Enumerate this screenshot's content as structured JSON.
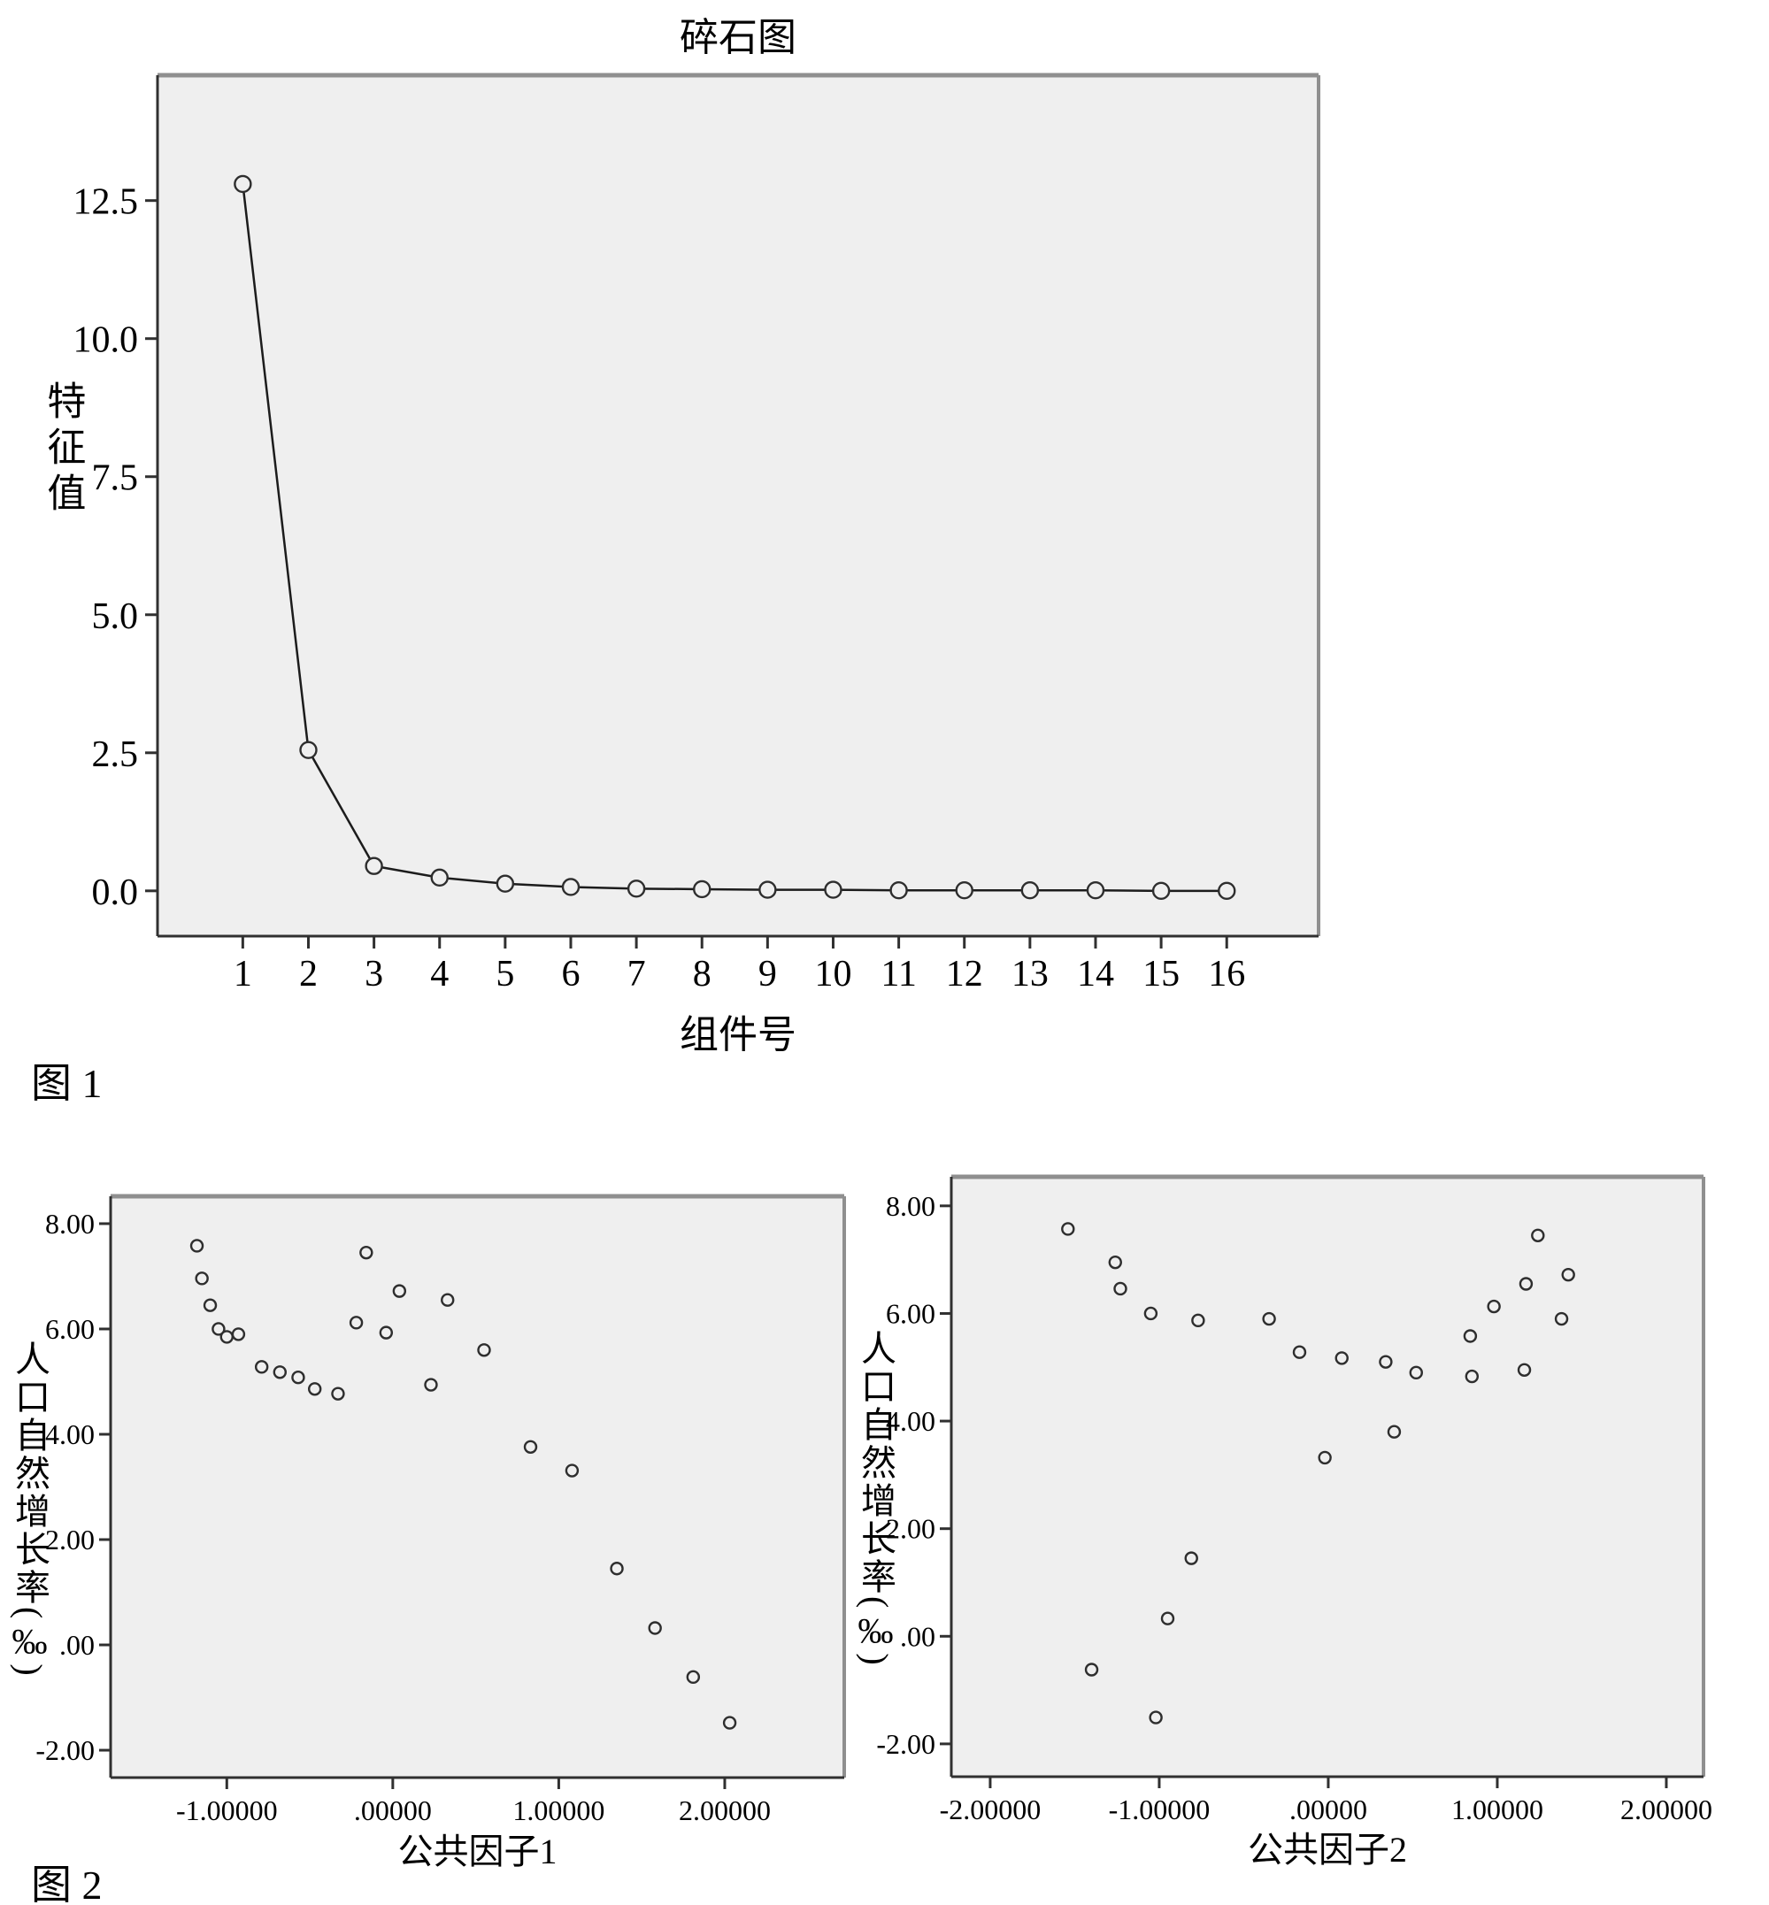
{
  "captions": {
    "fig1": "图 1",
    "fig2": "图 2"
  },
  "colors": {
    "plot_background": "#efefef",
    "line": "#1c1c1c",
    "marker_ring": "#2e2e2e",
    "border_light": "#8f8f8f",
    "border_dark": "#303030"
  },
  "chart_data": [
    {
      "id": "scree",
      "type": "line",
      "title": "碎石图",
      "xlabel": "组件号",
      "ylabel": "特征值",
      "x": [
        1,
        2,
        3,
        4,
        5,
        6,
        7,
        8,
        9,
        10,
        11,
        12,
        13,
        14,
        15,
        16
      ],
      "values": [
        12.8,
        2.55,
        0.45,
        0.24,
        0.13,
        0.07,
        0.04,
        0.03,
        0.02,
        0.02,
        0.01,
        0.01,
        0.01,
        0.01,
        0.0,
        0.0
      ],
      "xlim": [
        -0.3,
        17.4
      ],
      "ylim": [
        -0.82,
        14.77
      ],
      "xticks": {
        "values": [
          1,
          2,
          3,
          4,
          5,
          6,
          7,
          8,
          9,
          10,
          11,
          12,
          13,
          14,
          15,
          16
        ],
        "labels": [
          "1",
          "2",
          "3",
          "4",
          "5",
          "6",
          "7",
          "8",
          "9",
          "10",
          "11",
          "12",
          "13",
          "14",
          "15",
          "16"
        ]
      },
      "yticks": {
        "values": [
          0,
          2.5,
          5,
          7.5,
          10,
          12.5
        ],
        "labels": [
          "0.0",
          "2.5",
          "5.0",
          "7.5",
          "10.0",
          "12.5"
        ]
      },
      "grid": false,
      "legend": "none",
      "marker": "open-circle"
    },
    {
      "id": "scatter1",
      "type": "scatter",
      "title": "",
      "xlabel": "公共因子1",
      "ylabel": "人口自然增长率(‰)",
      "points": [
        [
          -1.18,
          7.58
        ],
        [
          -1.15,
          6.96
        ],
        [
          -1.1,
          6.45
        ],
        [
          -1.05,
          6.0
        ],
        [
          -1.0,
          5.85
        ],
        [
          -0.93,
          5.9
        ],
        [
          -0.79,
          5.28
        ],
        [
          -0.68,
          5.18
        ],
        [
          -0.57,
          5.08
        ],
        [
          -0.47,
          4.86
        ],
        [
          -0.33,
          4.77
        ],
        [
          -0.16,
          7.45
        ],
        [
          0.04,
          6.72
        ],
        [
          -0.22,
          6.12
        ],
        [
          -0.04,
          5.93
        ],
        [
          0.33,
          6.55
        ],
        [
          0.55,
          5.6
        ],
        [
          0.23,
          4.94
        ],
        [
          0.83,
          3.76
        ],
        [
          1.08,
          3.31
        ],
        [
          1.35,
          1.45
        ],
        [
          1.58,
          0.32
        ],
        [
          1.81,
          -0.61
        ],
        [
          2.03,
          -1.48
        ]
      ],
      "xlim": [
        -1.7,
        2.72
      ],
      "ylim": [
        -2.52,
        8.52
      ],
      "xticks": {
        "values": [
          -1,
          0,
          1,
          2
        ],
        "labels": [
          "-1.00000",
          ".00000",
          "1.00000",
          "2.00000"
        ]
      },
      "yticks": {
        "values": [
          8,
          6,
          4,
          2,
          0,
          -2
        ],
        "labels": [
          "8.00",
          "6.00",
          "4.00",
          "2.00",
          ".00",
          "-2.00"
        ]
      },
      "grid": false,
      "legend": "none",
      "marker": "open-circle"
    },
    {
      "id": "scatter2",
      "type": "scatter",
      "title": "",
      "xlabel": "公共因子2",
      "ylabel": "人口自然增长率(‰)",
      "points": [
        [
          -1.54,
          7.57
        ],
        [
          -1.26,
          6.95
        ],
        [
          -1.23,
          6.46
        ],
        [
          -1.05,
          6.0
        ],
        [
          -0.77,
          5.87
        ],
        [
          -0.35,
          5.9
        ],
        [
          -0.17,
          5.28
        ],
        [
          0.08,
          5.17
        ],
        [
          -0.02,
          3.32
        ],
        [
          -0.81,
          1.45
        ],
        [
          1.24,
          7.45
        ],
        [
          1.42,
          6.72
        ],
        [
          1.17,
          6.55
        ],
        [
          0.98,
          6.13
        ],
        [
          1.38,
          5.9
        ],
        [
          0.84,
          5.58
        ],
        [
          0.34,
          5.1
        ],
        [
          0.52,
          4.9
        ],
        [
          0.85,
          4.83
        ],
        [
          1.16,
          4.95
        ],
        [
          0.39,
          3.8
        ],
        [
          -0.95,
          0.33
        ],
        [
          -1.4,
          -0.62
        ],
        [
          -1.02,
          -1.51
        ]
      ],
      "xlim": [
        -2.23,
        2.22
      ],
      "ylim": [
        -2.61,
        8.54
      ],
      "xticks": {
        "values": [
          -2,
          -1,
          0,
          1,
          2
        ],
        "labels": [
          "-2.00000",
          "-1.00000",
          ".00000",
          "1.00000",
          "2.00000"
        ]
      },
      "yticks": {
        "values": [
          8,
          6,
          4,
          2,
          0,
          -2
        ],
        "labels": [
          "8.00",
          "6.00",
          "4.00",
          "2.00",
          ".00",
          "-2.00"
        ]
      },
      "grid": false,
      "legend": "none",
      "marker": "open-circle"
    }
  ]
}
